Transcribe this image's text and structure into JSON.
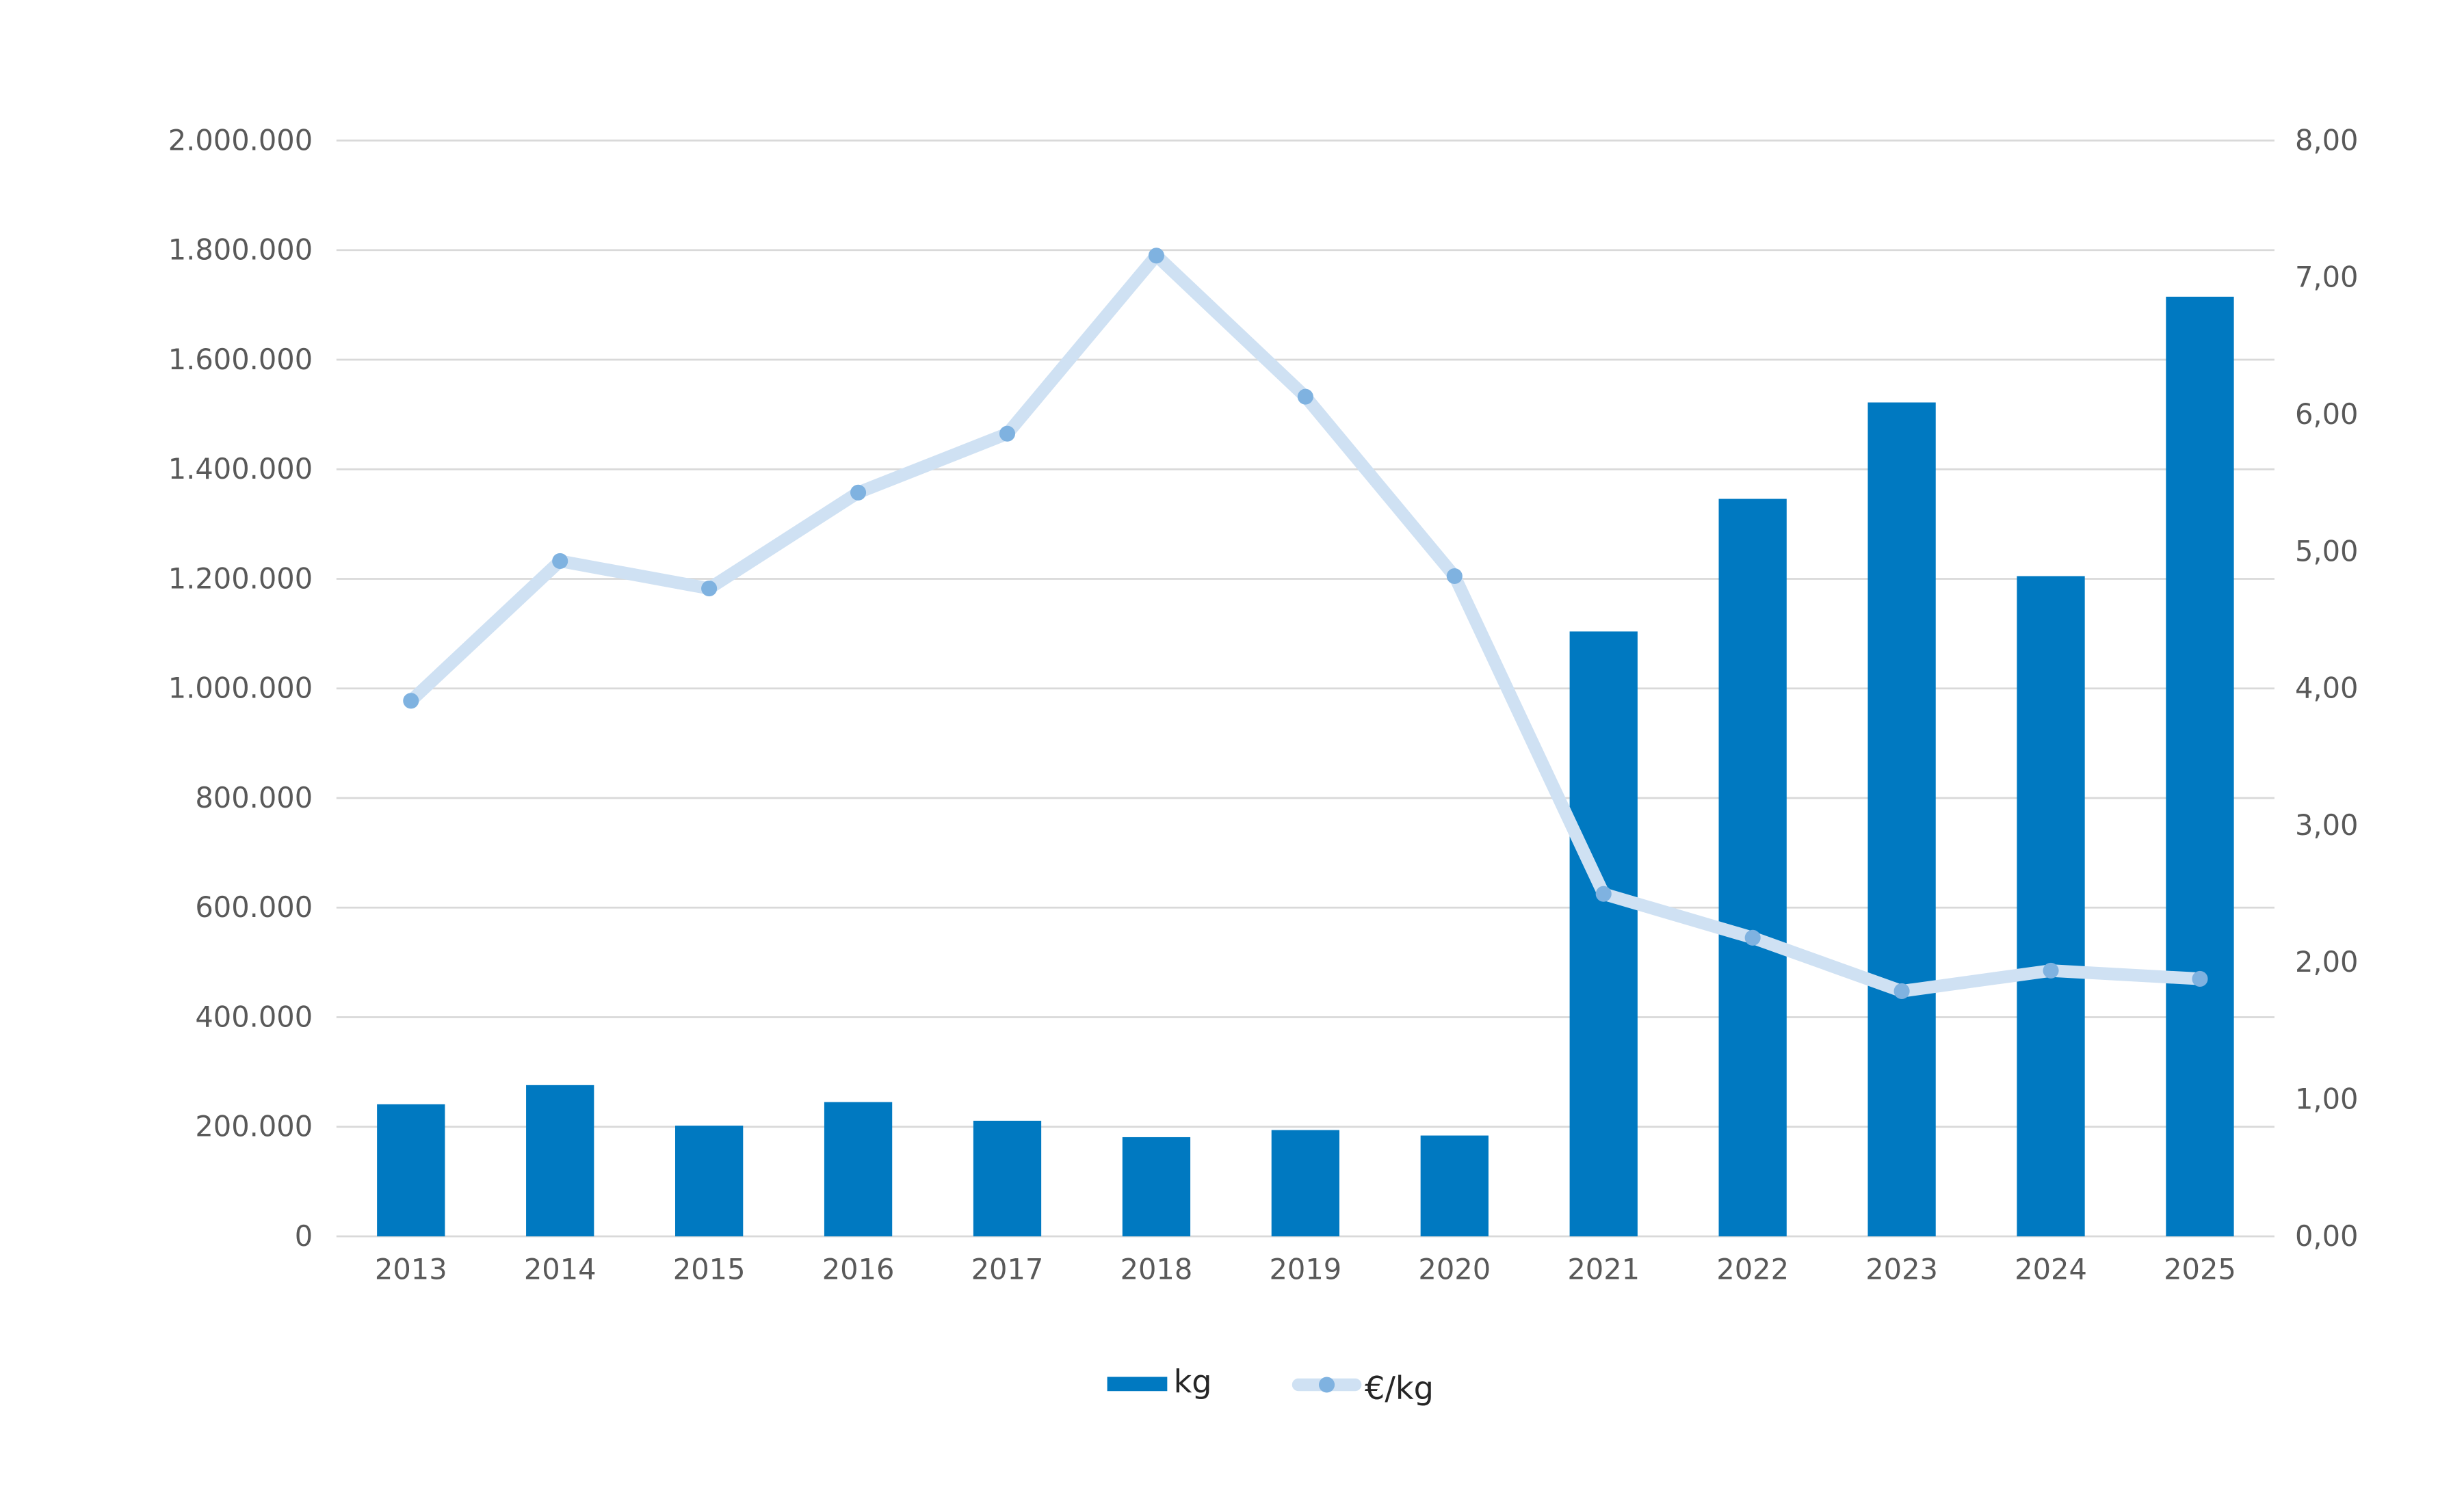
{
  "chart_data": {
    "type": "bar",
    "categories": [
      "2013",
      "2014",
      "2015",
      "2016",
      "2017",
      "2018",
      "2019",
      "2020",
      "2021",
      "2022",
      "2023",
      "2024",
      "2025"
    ],
    "series": [
      {
        "name": "kg",
        "type": "bar",
        "axis": "left",
        "color": "#0079C1",
        "values": [
          241000,
          276000,
          202000,
          245000,
          211000,
          181000,
          194000,
          184000,
          1104000,
          1346000,
          1522000,
          1205000,
          1715000
        ]
      },
      {
        "name": "€/kg",
        "type": "line",
        "axis": "right",
        "color": "#CFE1F3",
        "marker_color": "#7FB2E0",
        "values": [
          3.91,
          4.93,
          4.73,
          5.43,
          5.86,
          7.16,
          6.13,
          4.82,
          2.5,
          2.18,
          1.79,
          1.94,
          1.88
        ]
      }
    ],
    "y_left": {
      "range": [
        0,
        2000000
      ],
      "ticks": [
        "0",
        "200.000",
        "400.000",
        "600.000",
        "800.000",
        "1.000.000",
        "1.200.000",
        "1.400.000",
        "1.600.000",
        "1.800.000",
        "2.000.000"
      ]
    },
    "y_right": {
      "range": [
        0,
        8
      ],
      "ticks": [
        "0,00",
        "1,00",
        "2,00",
        "3,00",
        "4,00",
        "5,00",
        "6,00",
        "7,00",
        "8,00"
      ]
    },
    "grid": true,
    "legend_position": "bottom"
  }
}
